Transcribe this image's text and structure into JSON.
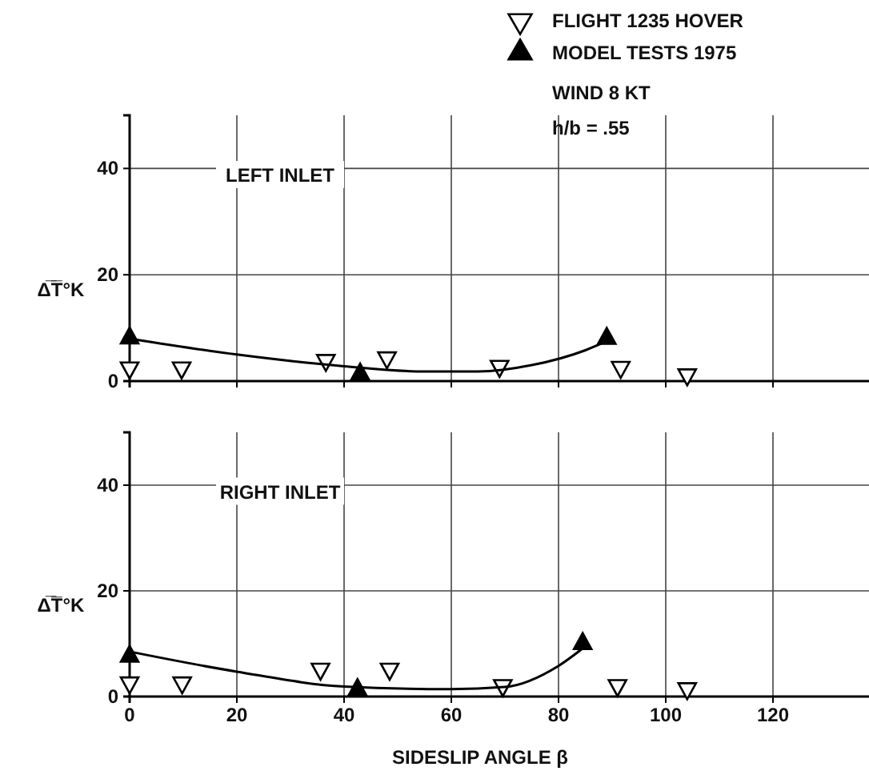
{
  "chart_data": [
    {
      "type": "scatter",
      "title": "LEFT INLET",
      "ylabel": "Δ̅T̅°K",
      "xlim": [
        0,
        140
      ],
      "ylim": [
        0,
        50
      ],
      "xticks": [
        0,
        20,
        40,
        60,
        80,
        100,
        120
      ],
      "yticks": [
        0,
        20,
        40
      ],
      "tick_labels": "y",
      "grid": true,
      "legend": "top right",
      "annotations": [
        "WIND 8 KT",
        "h/b = .55"
      ],
      "series": [
        {
          "name": "FLIGHT 1235 HOVER",
          "color": "#ffffff",
          "marker": "triangle-down",
          "x": [
            0,
            9.7,
            36.6,
            48,
            69,
            91.6,
            104
          ],
          "values": [
            2,
            2,
            3.4,
            3.9,
            2.3,
            2.1,
            0.7
          ]
        },
        {
          "name": "MODEL TESTS 1975",
          "color": "#000000",
          "marker": "triangle",
          "x": [
            0,
            43,
            89
          ],
          "values": [
            8.6,
            1.8,
            8.5
          ]
        },
        {
          "type": "line",
          "color": "#000000",
          "marker": "none",
          "x": [
            0,
            20,
            40,
            55,
            65,
            75,
            85,
            89
          ],
          "values": [
            8,
            5,
            2.8,
            1.8,
            1.8,
            3,
            5.8,
            7.5
          ]
        }
      ]
    },
    {
      "type": "scatter",
      "title": "RIGHT INLET",
      "ylabel": "Δ̅T̅°K",
      "xlabel": "SIDESLIP ANGLE β",
      "xlim": [
        0,
        140
      ],
      "ylim": [
        0,
        50
      ],
      "xticks": [
        0,
        20,
        40,
        60,
        80,
        100,
        120
      ],
      "yticks": [
        0,
        20,
        40
      ],
      "grid": true,
      "series": [
        {
          "color": "#ffffff",
          "marker": "triangle-down",
          "x": [
            0,
            9.8,
            35.6,
            48.5,
            69.6,
            91,
            104
          ],
          "values": [
            2.1,
            2.1,
            4.7,
            4.7,
            1.6,
            1.6,
            1
          ]
        },
        {
          "color": "#000000",
          "marker": "triangle",
          "x": [
            0,
            42.5,
            84.5
          ],
          "values": [
            8.1,
            1.8,
            10.5
          ]
        },
        {
          "type": "line",
          "color": "#000000",
          "marker": "none",
          "x": [
            0,
            20,
            40,
            60,
            70,
            80,
            85
          ],
          "values": [
            8.5,
            4.7,
            1.9,
            1.4,
            1.8,
            5.8,
            9.5
          ]
        }
      ]
    }
  ]
}
